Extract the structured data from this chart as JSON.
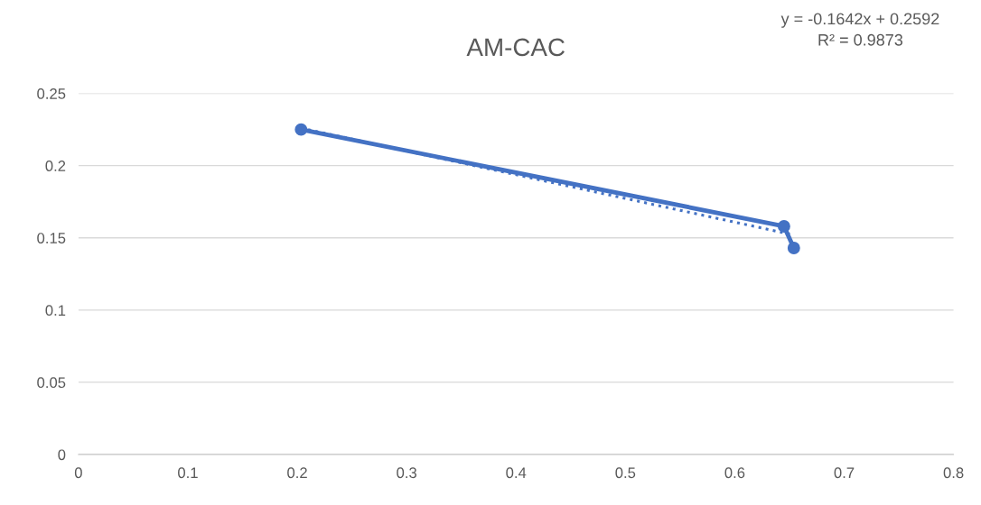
{
  "chart_data": {
    "type": "line",
    "title": "AM-CAC",
    "xlim": [
      0,
      0.8
    ],
    "xticks": [
      {
        "value": 0,
        "label": "0"
      },
      0.1,
      0.2,
      0.3,
      0.4,
      0.5,
      0.6,
      0.7,
      0.8
    ],
    "ylim": [
      0,
      0.25
    ],
    "yticks": [
      {
        "value": 0,
        "label": "0"
      },
      0.05,
      0.1,
      0.15,
      0.2,
      0.25
    ],
    "grid": "y",
    "legend": false,
    "series": [
      {
        "color": "#4472c4",
        "marker": "circle",
        "line_style": "solid",
        "x": [
          0.2035,
          0.645,
          0.654
        ],
        "values": [
          0.225,
          0.158,
          0.143
        ]
      },
      {
        "color": "#4472c4",
        "marker": "none",
        "line_style": "dotted",
        "x": [
          0.2035,
          0.654
        ],
        "values": [
          0.226,
          0.152
        ]
      }
    ],
    "annotations": [
      "y = -0.1642x + 0.2592\nR² = 0.9873"
    ]
  }
}
